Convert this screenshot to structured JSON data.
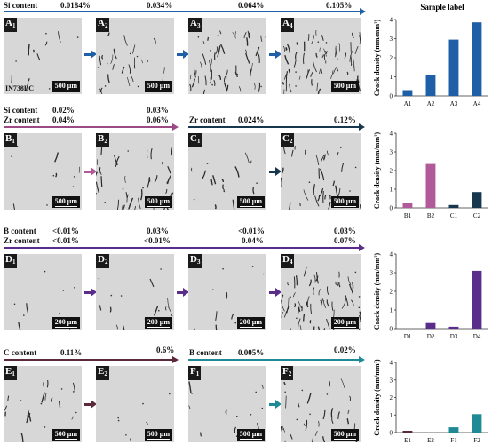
{
  "rows": [
    {
      "id": "A",
      "headers": [
        {
          "key": "si_label",
          "text": "Si content"
        },
        {
          "key": "v1",
          "text": "0.0184%"
        },
        {
          "key": "v2",
          "text": "0.034%"
        },
        {
          "key": "v3",
          "text": "0.064%"
        },
        {
          "key": "v4",
          "text": "0.105%"
        }
      ],
      "arrow_color": "#1f5fa8",
      "panels": [
        {
          "letter": "A",
          "sub": "1",
          "scale": "500 μm"
        },
        {
          "letter": "A",
          "sub": "2",
          "scale": "500 μm"
        },
        {
          "letter": "A",
          "sub": "3",
          "scale": ""
        },
        {
          "letter": "A",
          "sub": "4",
          "scale": "500 μm"
        }
      ],
      "tag": "IN738LC"
    },
    {
      "id": "BC",
      "headers": [
        {
          "key": "si_label",
          "text": "Si content"
        },
        {
          "key": "zr_label",
          "text": "Zr content"
        },
        {
          "key": "b_si1",
          "text": "0.02%"
        },
        {
          "key": "b_zr1",
          "text": "0.04%"
        },
        {
          "key": "b_si2",
          "text": "0.03%"
        },
        {
          "key": "b_zr2",
          "text": "0.06%"
        },
        {
          "key": "c_zr_label",
          "text": "Zr content"
        },
        {
          "key": "c_zr1",
          "text": "0.024%"
        },
        {
          "key": "c_zr2",
          "text": "0.12%"
        }
      ],
      "arrow_color_left": "#9b4a86",
      "arrow_color_right": "#17374f",
      "panels": [
        {
          "letter": "B",
          "sub": "1",
          "scale": "500 μm"
        },
        {
          "letter": "B",
          "sub": "2",
          "scale": "500 μm"
        },
        {
          "letter": "C",
          "sub": "1",
          "scale": "500 μm"
        },
        {
          "letter": "C",
          "sub": "2",
          "scale": "500 μm"
        }
      ]
    },
    {
      "id": "D",
      "headers": [
        {
          "key": "b_label",
          "text": "B content"
        },
        {
          "key": "zr_label",
          "text": "Zr content"
        },
        {
          "key": "b1",
          "text": "<0.01%"
        },
        {
          "key": "zr1",
          "text": "<0.01%"
        },
        {
          "key": "b2",
          "text": "0.03%"
        },
        {
          "key": "zr2",
          "text": "<0.01%"
        },
        {
          "key": "b3",
          "text": "<0.01%"
        },
        {
          "key": "zr3",
          "text": "0.04%"
        },
        {
          "key": "b4",
          "text": "0.03%"
        },
        {
          "key": "zr4",
          "text": "0.07%"
        }
      ],
      "arrow_color": "#5b2d8a",
      "panels": [
        {
          "letter": "D",
          "sub": "1",
          "scale": "200 μm"
        },
        {
          "letter": "D",
          "sub": "2",
          "scale": "200 μm"
        },
        {
          "letter": "D",
          "sub": "3",
          "scale": "200 μm"
        },
        {
          "letter": "D",
          "sub": "4",
          "scale": "200 μm"
        }
      ]
    },
    {
      "id": "EF",
      "headers": [
        {
          "key": "c_label",
          "text": "C content"
        },
        {
          "key": "c1",
          "text": "0.11%"
        },
        {
          "key": "c2",
          "text": "0.6%"
        },
        {
          "key": "b_label",
          "text": "B content"
        },
        {
          "key": "bv1",
          "text": "0.005%"
        },
        {
          "key": "bv2",
          "text": "0.02%"
        }
      ],
      "arrow_color_left": "#5a2a3a",
      "arrow_color_right": "#1f8a95",
      "panels": [
        {
          "letter": "E",
          "sub": "1",
          "scale": "500 μm"
        },
        {
          "letter": "E",
          "sub": "2",
          "scale": "500 μm"
        },
        {
          "letter": "F",
          "sub": "1",
          "scale": "500 μm"
        },
        {
          "letter": "F",
          "sub": "2",
          "scale": "500 μm"
        }
      ]
    }
  ],
  "chart_data": [
    {
      "type": "bar",
      "title": "Sample label",
      "ylabel": "Crack density (mm/mm²)",
      "categories": [
        "A1",
        "A2",
        "A3",
        "A4"
      ],
      "values": [
        0.3,
        1.1,
        2.95,
        3.85
      ],
      "colors": [
        "#1f5fa8",
        "#1f5fa8",
        "#1f5fa8",
        "#1f5fa8"
      ],
      "ylim": [
        0,
        4
      ],
      "yticks": [
        "0",
        "1",
        "2",
        "3",
        "4"
      ]
    },
    {
      "type": "bar",
      "title": "",
      "ylabel": "Crack density (mm/mm²)",
      "categories": [
        "B1",
        "B2",
        "C1",
        "C2"
      ],
      "values": [
        0.25,
        2.35,
        0.15,
        0.85
      ],
      "colors": [
        "#b05a9a",
        "#b05a9a",
        "#17374f",
        "#17374f"
      ],
      "ylim": [
        0,
        4
      ],
      "yticks": [
        "0",
        "1",
        "2",
        "3",
        "4"
      ]
    },
    {
      "type": "bar",
      "title": "",
      "ylabel": "Crack density (mm/mm²)",
      "categories": [
        "D1",
        "D2",
        "D3",
        "D4"
      ],
      "values": [
        0.0,
        0.3,
        0.1,
        3.1
      ],
      "colors": [
        "#5b2d8a",
        "#5b2d8a",
        "#5b2d8a",
        "#5b2d8a"
      ],
      "ylim": [
        0,
        4
      ],
      "yticks": [
        "0",
        "1",
        "2",
        "3",
        "4"
      ]
    },
    {
      "type": "bar",
      "title": "",
      "ylabel": "Crack density (mm/mm²)",
      "categories": [
        "E1",
        "E2",
        "F1",
        "F2"
      ],
      "values": [
        0.1,
        0.0,
        0.3,
        1.05
      ],
      "colors": [
        "#5a2a3a",
        "#5a2a3a",
        "#1f8a95",
        "#1f8a95"
      ],
      "ylim": [
        0,
        4
      ],
      "yticks": [
        "0",
        "1",
        "2",
        "3",
        "4"
      ]
    }
  ]
}
